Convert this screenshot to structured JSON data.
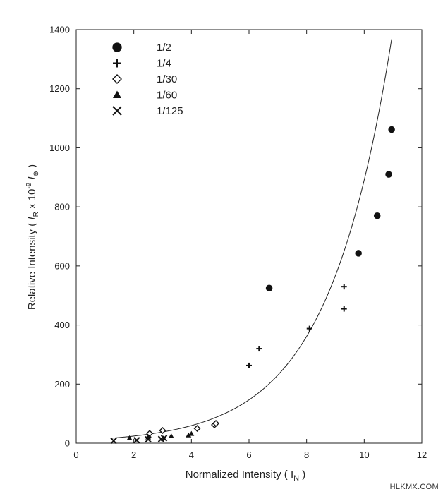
{
  "chart_data": {
    "type": "scatter",
    "xlabel": "Normalized Intensity ( I",
    "xlabel_sub": "N",
    "xlabel_end": " )",
    "ylabel_parts": [
      "Relative Intensity ( ",
      "I",
      "R",
      " x 10",
      "-9",
      " ",
      "I",
      "⊕",
      " )"
    ],
    "xlim": [
      0,
      12
    ],
    "ylim": [
      0,
      1400
    ],
    "x_ticks": [
      0,
      2,
      4,
      6,
      8,
      10,
      12
    ],
    "y_ticks": [
      0,
      200,
      400,
      600,
      800,
      1000,
      1200,
      1400
    ],
    "x_tick_labels": [
      "0",
      "2",
      "4",
      "6",
      "8",
      "10",
      "12"
    ],
    "y_tick_labels": [
      "0",
      "200",
      "400",
      "600",
      "800",
      "1000",
      "1200",
      "1400"
    ],
    "grid": false,
    "legend_position": "top-left",
    "series": [
      {
        "name": "1/2",
        "marker": "circle",
        "points": [
          [
            6.7,
            525
          ],
          [
            9.8,
            643
          ],
          [
            10.45,
            770
          ],
          [
            10.85,
            910
          ],
          [
            10.95,
            1062
          ]
        ]
      },
      {
        "name": "1/4",
        "marker": "plus",
        "points": [
          [
            6.0,
            263
          ],
          [
            6.35,
            320
          ],
          [
            8.1,
            388
          ],
          [
            9.3,
            455
          ],
          [
            9.3,
            530
          ]
        ]
      },
      {
        "name": "1/30",
        "marker": "diamond",
        "points": [
          [
            2.55,
            33
          ],
          [
            3.0,
            43
          ],
          [
            4.2,
            50
          ],
          [
            4.8,
            62
          ],
          [
            4.85,
            67
          ]
        ]
      },
      {
        "name": "1/60",
        "marker": "triangle",
        "points": [
          [
            1.85,
            17
          ],
          [
            2.5,
            20
          ],
          [
            3.3,
            24
          ],
          [
            3.9,
            27
          ],
          [
            4.0,
            32
          ]
        ]
      },
      {
        "name": "1/125",
        "marker": "x",
        "points": [
          [
            1.3,
            8
          ],
          [
            2.1,
            10
          ],
          [
            2.5,
            13
          ],
          [
            2.95,
            14
          ],
          [
            3.05,
            17
          ]
        ]
      }
    ],
    "curve": {
      "type": "exponential",
      "a": 9.8,
      "b": 0.451,
      "x_range": [
        1.2,
        10.95
      ]
    }
  },
  "watermark": "HLKMX.COM"
}
